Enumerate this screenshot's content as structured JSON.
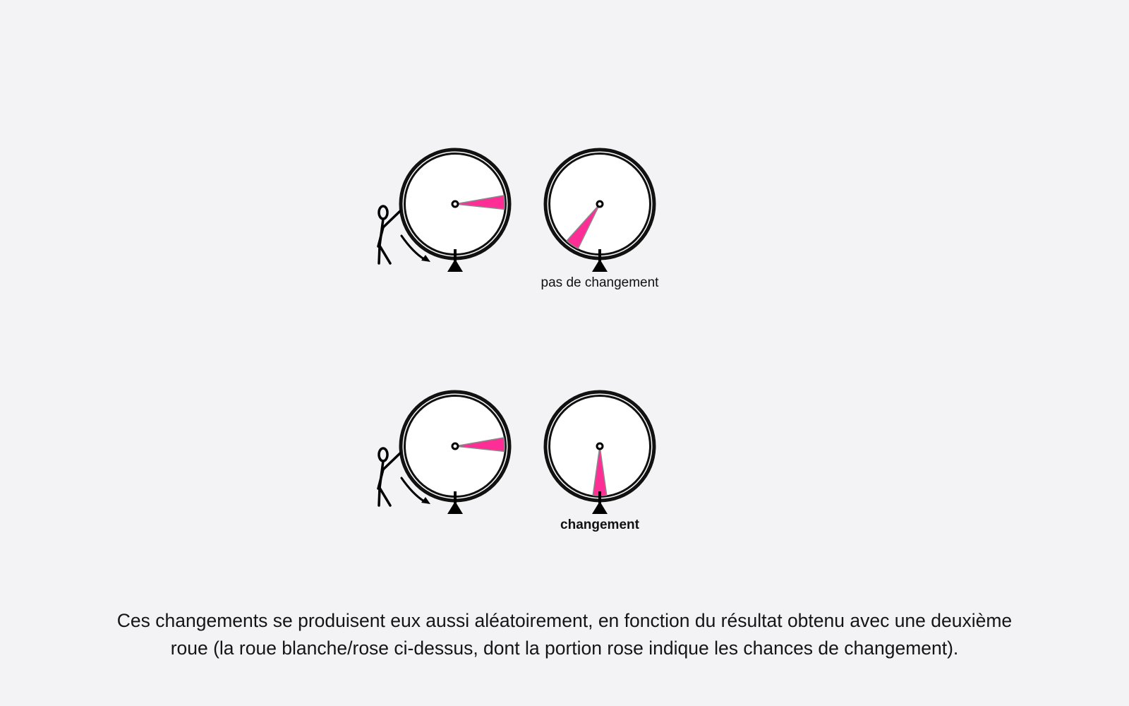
{
  "colors": {
    "background": "#f3f2f5",
    "wheel_fill": "#ffffff",
    "wheel_rim": "#111111",
    "slice_fill": "#ff2e97",
    "slice_edge": "#8a8a8a",
    "ink": "#000000"
  },
  "rows": [
    {
      "spin_wheel": {
        "slice_center_deg": 88,
        "slice_width_deg": 16,
        "icon": "stick-figure-spinning-icon"
      },
      "result_wheel": {
        "slice_center_deg": 214,
        "slice_width_deg": 16
      },
      "result_label": "pas de changement",
      "label_bold": false
    },
    {
      "spin_wheel": {
        "slice_center_deg": 88,
        "slice_width_deg": 16,
        "icon": "stick-figure-spinning-icon"
      },
      "result_wheel": {
        "slice_center_deg": 180,
        "slice_width_deg": 16
      },
      "result_label": "changement",
      "label_bold": true
    }
  ],
  "caption": {
    "line1": "Ces changements se produisent eux aussi aléatoirement, en fonction du résultat obtenu avec une deuxième",
    "line2": "roue (la roue blanche/rose ci-dessus, dont la portion rose indique les chances de changement)."
  }
}
